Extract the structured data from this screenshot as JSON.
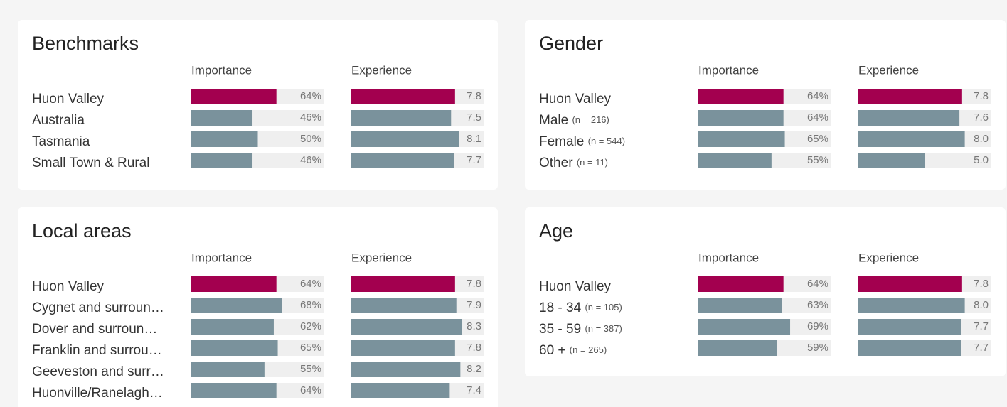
{
  "chart_data": [
    {
      "type": "bar",
      "title": "Benchmarks",
      "categories": [
        "Huon Valley",
        "Australia",
        "Tasmania",
        "Small Town & Rural"
      ],
      "category_notes": [
        null,
        null,
        null,
        null
      ],
      "series": [
        {
          "name": "Importance",
          "xlim": [
            0,
            100
          ],
          "colors": [
            "#a3004f",
            "#7a929c",
            "#7a929c",
            "#7a929c"
          ],
          "values": [
            64,
            46,
            50,
            46
          ],
          "value_labels": [
            "64%",
            "46%",
            "50%",
            "46%"
          ]
        },
        {
          "name": "Experience",
          "xlim": [
            0,
            10
          ],
          "colors": [
            "#a3004f",
            "#7a929c",
            "#7a929c",
            "#7a929c"
          ],
          "values": [
            7.8,
            7.5,
            8.1,
            7.7
          ],
          "value_labels": [
            "7.8",
            "7.5",
            "8.1",
            "7.7"
          ]
        }
      ]
    },
    {
      "type": "bar",
      "title": "Gender",
      "categories": [
        "Huon Valley",
        "Male",
        "Female",
        "Other"
      ],
      "category_notes": [
        null,
        "(n = 216)",
        "(n = 544)",
        "(n = 11)"
      ],
      "series": [
        {
          "name": "Importance",
          "xlim": [
            0,
            100
          ],
          "colors": [
            "#a3004f",
            "#7a929c",
            "#7a929c",
            "#7a929c"
          ],
          "values": [
            64,
            64,
            65,
            55
          ],
          "value_labels": [
            "64%",
            "64%",
            "65%",
            "55%"
          ]
        },
        {
          "name": "Experience",
          "xlim": [
            0,
            10
          ],
          "colors": [
            "#a3004f",
            "#7a929c",
            "#7a929c",
            "#7a929c"
          ],
          "values": [
            7.8,
            7.6,
            8.0,
            5.0
          ],
          "value_labels": [
            "7.8",
            "7.6",
            "8.0",
            "5.0"
          ]
        }
      ]
    },
    {
      "type": "bar",
      "title": "Local areas",
      "categories": [
        "Huon Valley",
        "Cygnet and surroun…",
        "Dover and surroun…",
        "Franklin and surrou…",
        "Geeveston and surr…",
        "Huonville/Ranelagh…"
      ],
      "category_notes": [
        null,
        null,
        null,
        null,
        null,
        null
      ],
      "series": [
        {
          "name": "Importance",
          "xlim": [
            0,
            100
          ],
          "colors": [
            "#a3004f",
            "#7a929c",
            "#7a929c",
            "#7a929c",
            "#7a929c",
            "#7a929c"
          ],
          "values": [
            64,
            68,
            62,
            65,
            55,
            64
          ],
          "value_labels": [
            "64%",
            "68%",
            "62%",
            "65%",
            "55%",
            "64%"
          ]
        },
        {
          "name": "Experience",
          "xlim": [
            0,
            10
          ],
          "colors": [
            "#a3004f",
            "#7a929c",
            "#7a929c",
            "#7a929c",
            "#7a929c",
            "#7a929c"
          ],
          "values": [
            7.8,
            7.9,
            8.3,
            7.8,
            8.2,
            7.4
          ],
          "value_labels": [
            "7.8",
            "7.9",
            "8.3",
            "7.8",
            "8.2",
            "7.4"
          ]
        }
      ]
    },
    {
      "type": "bar",
      "title": "Age",
      "categories": [
        "Huon Valley",
        "18 - 34",
        "35 - 59",
        "60 +"
      ],
      "category_notes": [
        null,
        "(n = 105)",
        "(n = 387)",
        "(n = 265)"
      ],
      "series": [
        {
          "name": "Importance",
          "xlim": [
            0,
            100
          ],
          "colors": [
            "#a3004f",
            "#7a929c",
            "#7a929c",
            "#7a929c"
          ],
          "values": [
            64,
            63,
            69,
            59
          ],
          "value_labels": [
            "64%",
            "63%",
            "69%",
            "59%"
          ]
        },
        {
          "name": "Experience",
          "xlim": [
            0,
            10
          ],
          "colors": [
            "#a3004f",
            "#7a929c",
            "#7a929c",
            "#7a929c"
          ],
          "values": [
            7.8,
            8.0,
            7.7,
            7.7
          ],
          "value_labels": [
            "7.8",
            "8.0",
            "7.7",
            "7.7"
          ]
        }
      ]
    }
  ]
}
